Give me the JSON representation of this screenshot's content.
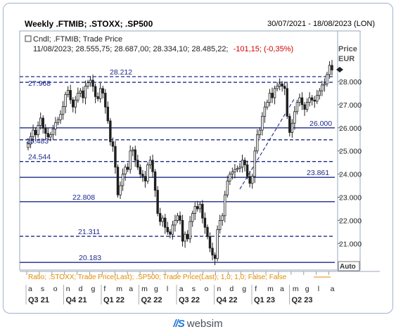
{
  "header": {
    "title": "Weekly .FTMIB; .STOXX; .SP500",
    "range": "30/07/2021 - 18/08/2023 (LON)"
  },
  "info": {
    "line1": "Cndl; .FTMIB; Trade Price",
    "line2_values": "11/08/2023; 28.555,75; 28.687,00; 28.334,10; 28.485,22;",
    "line2_change": "-101,15; (-0,35%)"
  },
  "price_axis": {
    "title_line1": "Price",
    "title_line2": "EUR",
    "auto_label": "Auto",
    "ticks": [
      "28.000",
      "27.000",
      "26.000",
      "25.000",
      "24.000",
      "23.000",
      "22.000",
      "21.000"
    ]
  },
  "ratio_bar": {
    "text": "Ratio; .STOXX; Trade Price(Last); .SP500; Trade Price(Last); 1,0; 1,0; False; False"
  },
  "footer": {
    "brand": "websim",
    "mark": "//S"
  },
  "colors": {
    "level_line": "#1c2a8a",
    "candle": "#1e1e1e",
    "change_negative": "#d40000",
    "ratio_text": "#e08a00",
    "trend_line": "#1c2a8a"
  },
  "chart_data": {
    "type": "candlestick",
    "instrument": ".FTMIB",
    "ylim": [
      20000,
      29400
    ],
    "grid": false,
    "levels": [
      {
        "value": 28212,
        "label": "28.212",
        "style": "dashed"
      },
      {
        "value": 27968,
        "label": "27.968",
        "style": "dashed"
      },
      {
        "value": 26000,
        "label": "26.000",
        "style": "solid"
      },
      {
        "value": 25483,
        "label": "25.483",
        "style": "dashed"
      },
      {
        "value": 24544,
        "label": "24.544",
        "style": "dashed"
      },
      {
        "value": 23861,
        "label": "23.861",
        "style": "solid"
      },
      {
        "value": 22808,
        "label": "22.808",
        "style": "solid"
      },
      {
        "value": 21311,
        "label": "21.311",
        "style": "dashed"
      },
      {
        "value": 20183,
        "label": "20.183",
        "style": "solid"
      }
    ],
    "trendline": {
      "from": [
        "2023-03-17",
        23350
      ],
      "to": [
        "2023-08-18",
        27280
      ],
      "style": "dashed"
    },
    "month_labels": [
      "a",
      "s",
      "o",
      "n",
      "d",
      "g",
      "f",
      "m",
      "a",
      "m",
      "g",
      "l",
      "a",
      "s",
      "o",
      "n",
      "d",
      "g",
      "f",
      "m",
      "a",
      "m",
      "g",
      "l",
      "a"
    ],
    "quarter_labels": [
      "Q3 21",
      "Q4 21",
      "Q1 22",
      "Q2 22",
      "Q3 22",
      "Q4 22",
      "Q1 23",
      "Q2 23"
    ],
    "closes": [
      25300,
      25620,
      25900,
      25700,
      26100,
      26420,
      25980,
      25760,
      25600,
      25700,
      25950,
      26230,
      26350,
      26580,
      26920,
      27440,
      27620,
      27210,
      26900,
      27200,
      27500,
      27600,
      27300,
      27800,
      27950,
      28060,
      27790,
      27350,
      27260,
      27700,
      27500,
      26900,
      26300,
      25400,
      25200,
      24300,
      23100,
      23500,
      24000,
      24300,
      24200,
      25000,
      25050,
      24600,
      24300,
      24000,
      23900,
      23700,
      24400,
      24600,
      24100,
      23300,
      22300,
      21950,
      22100,
      21700,
      21500,
      21400,
      21800,
      22000,
      22200,
      22000,
      21100,
      21400,
      21200,
      21950,
      22300,
      22600,
      22500,
      22700,
      22100,
      21700,
      21300,
      20800,
      20500,
      20350,
      21600,
      22000,
      22200,
      23100,
      23700,
      24000,
      24100,
      24200,
      24250,
      24300,
      24600,
      24400,
      23900,
      23600,
      23900,
      25000,
      25700,
      25900,
      26500,
      26900,
      27100,
      27500,
      27300,
      27700,
      27800,
      27900,
      27800,
      27700,
      26500,
      25800,
      26200,
      26700,
      27100,
      27300,
      27000,
      26800,
      27100,
      27300,
      27200,
      27150,
      27400,
      27600,
      27850,
      27900,
      28300,
      28700,
      28500
    ]
  }
}
